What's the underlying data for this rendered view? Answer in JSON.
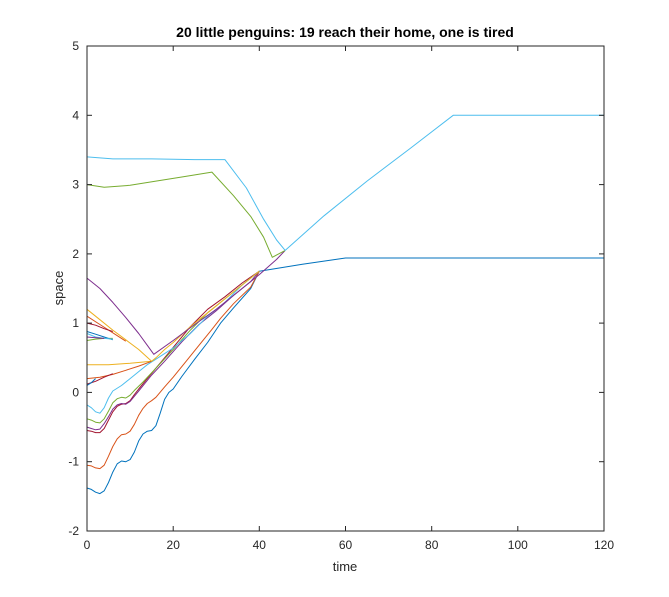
{
  "chart_data": {
    "type": "line",
    "title": "20 little penguins: 19 reach their home, one is tired",
    "xlabel": "time",
    "ylabel": "space",
    "xlim": [
      0,
      120
    ],
    "ylim": [
      -2,
      5
    ],
    "x_ticks": [
      0,
      20,
      40,
      60,
      80,
      100,
      120
    ],
    "y_ticks": [
      -2,
      -1,
      0,
      1,
      2,
      3,
      4,
      5
    ],
    "grid": false,
    "legend": "none",
    "series": [
      {
        "color": "#0072BD",
        "points": [
          [
            0,
            -1.38
          ],
          [
            1,
            -1.4
          ],
          [
            2,
            -1.44
          ],
          [
            3,
            -1.46
          ],
          [
            4,
            -1.42
          ],
          [
            5,
            -1.3
          ],
          [
            6,
            -1.15
          ],
          [
            7,
            -1.03
          ],
          [
            8,
            -0.99
          ],
          [
            9,
            -1.0
          ],
          [
            10,
            -0.97
          ],
          [
            11,
            -0.86
          ],
          [
            12,
            -0.7
          ],
          [
            13,
            -0.6
          ],
          [
            14,
            -0.56
          ],
          [
            15,
            -0.55
          ],
          [
            16,
            -0.48
          ],
          [
            17,
            -0.3
          ],
          [
            18,
            -0.1
          ],
          [
            19,
            0.0
          ],
          [
            20,
            0.05
          ],
          [
            22,
            0.23
          ],
          [
            25,
            0.48
          ],
          [
            28,
            0.72
          ],
          [
            31,
            1.0
          ],
          [
            34,
            1.22
          ],
          [
            38,
            1.5
          ],
          [
            40,
            1.75
          ],
          [
            50,
            1.85
          ],
          [
            60,
            1.94
          ],
          [
            120,
            1.94
          ]
        ]
      },
      {
        "color": "#D95319",
        "points": [
          [
            0,
            -1.05
          ],
          [
            1,
            -1.06
          ],
          [
            2,
            -1.09
          ],
          [
            3,
            -1.1
          ],
          [
            4,
            -1.05
          ],
          [
            5,
            -0.92
          ],
          [
            6,
            -0.78
          ],
          [
            7,
            -0.67
          ],
          [
            8,
            -0.61
          ],
          [
            9,
            -0.6
          ],
          [
            10,
            -0.56
          ],
          [
            11,
            -0.46
          ],
          [
            12,
            -0.33
          ],
          [
            13,
            -0.23
          ],
          [
            14,
            -0.16
          ],
          [
            15,
            -0.12
          ],
          [
            16,
            -0.07
          ],
          [
            18,
            0.08
          ],
          [
            20,
            0.22
          ],
          [
            23,
            0.45
          ],
          [
            26,
            0.68
          ],
          [
            29,
            0.91
          ],
          [
            31,
            1.07
          ],
          [
            34,
            1.28
          ],
          [
            38,
            1.52
          ],
          [
            40,
            1.75
          ]
        ]
      },
      {
        "color": "#A2142F",
        "points": [
          [
            0,
            -0.55
          ],
          [
            1,
            -0.56
          ],
          [
            2,
            -0.58
          ],
          [
            3,
            -0.58
          ],
          [
            4,
            -0.52
          ],
          [
            5,
            -0.4
          ],
          [
            6,
            -0.28
          ],
          [
            7,
            -0.2
          ],
          [
            8,
            -0.17
          ],
          [
            9,
            -0.16
          ],
          [
            10,
            -0.12
          ],
          [
            11,
            -0.03
          ],
          [
            12,
            0.05
          ],
          [
            14,
            0.2
          ],
          [
            16,
            0.35
          ],
          [
            18,
            0.5
          ],
          [
            20,
            0.65
          ],
          [
            24,
            0.95
          ],
          [
            28,
            1.2
          ],
          [
            32,
            1.38
          ],
          [
            36,
            1.58
          ],
          [
            40,
            1.75
          ]
        ]
      },
      {
        "color": "#77AC30",
        "points": [
          [
            0,
            -0.38
          ],
          [
            1,
            -0.4
          ],
          [
            2,
            -0.43
          ],
          [
            3,
            -0.44
          ],
          [
            4,
            -0.38
          ],
          [
            5,
            -0.27
          ],
          [
            6,
            -0.15
          ],
          [
            7,
            -0.09
          ],
          [
            8,
            -0.07
          ],
          [
            9,
            -0.08
          ],
          [
            10,
            -0.04
          ],
          [
            11,
            0.03
          ],
          [
            13,
            0.15
          ],
          [
            16,
            0.35
          ],
          [
            20,
            0.62
          ],
          [
            24,
            0.9
          ],
          [
            28,
            1.15
          ],
          [
            32,
            1.35
          ],
          [
            36,
            1.55
          ],
          [
            40,
            1.75
          ]
        ]
      },
      {
        "color": "#7E2F8E",
        "points": [
          [
            0,
            -0.5
          ],
          [
            1,
            -0.52
          ],
          [
            2,
            -0.54
          ],
          [
            3,
            -0.53
          ],
          [
            4,
            -0.45
          ],
          [
            5,
            -0.35
          ],
          [
            6,
            -0.24
          ],
          [
            7,
            -0.18
          ],
          [
            8,
            -0.16
          ],
          [
            9,
            -0.17
          ],
          [
            10,
            -0.13
          ],
          [
            12,
            0.02
          ],
          [
            15,
            0.25
          ],
          [
            18,
            0.45
          ],
          [
            22,
            0.73
          ],
          [
            26,
            0.98
          ],
          [
            30,
            1.18
          ],
          [
            34,
            1.4
          ],
          [
            38,
            1.6
          ],
          [
            40,
            1.75
          ]
        ]
      },
      {
        "color": "#4DBEEE",
        "points": [
          [
            0,
            -0.18
          ],
          [
            1,
            -0.22
          ],
          [
            2,
            -0.28
          ],
          [
            3,
            -0.3
          ],
          [
            4,
            -0.22
          ],
          [
            5,
            -0.08
          ],
          [
            6,
            0.02
          ],
          [
            8,
            0.1
          ],
          [
            10,
            0.2
          ],
          [
            12,
            0.3
          ],
          [
            14,
            0.4
          ],
          [
            16,
            0.48
          ],
          [
            18,
            0.56
          ],
          [
            20,
            0.64
          ],
          [
            24,
            0.85
          ],
          [
            28,
            1.1
          ],
          [
            32,
            1.3
          ],
          [
            36,
            1.55
          ],
          [
            40,
            1.75
          ]
        ]
      },
      {
        "color": "#EDB120",
        "points": [
          [
            0,
            0.4
          ],
          [
            5,
            0.4
          ],
          [
            10,
            0.42
          ],
          [
            15,
            0.45
          ],
          [
            16,
            0.5
          ],
          [
            18,
            0.62
          ],
          [
            20,
            0.72
          ],
          [
            24,
            0.95
          ],
          [
            28,
            1.15
          ],
          [
            32,
            1.35
          ],
          [
            36,
            1.55
          ],
          [
            40,
            1.75
          ]
        ]
      },
      {
        "color": "#D95319",
        "points": [
          [
            0,
            0.2
          ],
          [
            3,
            0.22
          ],
          [
            6,
            0.26
          ],
          [
            9,
            0.32
          ],
          [
            12,
            0.38
          ],
          [
            15,
            0.45
          ]
        ]
      },
      {
        "color": "#A2142F",
        "points": [
          [
            0,
            0.12
          ],
          [
            2,
            0.16
          ],
          [
            4,
            0.22
          ],
          [
            6,
            0.27
          ]
        ]
      },
      {
        "color": "#0072BD",
        "points": [
          [
            0,
            0.1
          ],
          [
            1,
            0.14
          ],
          [
            2,
            0.2
          ]
        ]
      },
      {
        "color": "#77AC30",
        "points": [
          [
            0,
            0.75
          ],
          [
            2,
            0.77
          ],
          [
            4,
            0.78
          ],
          [
            6,
            0.78
          ]
        ]
      },
      {
        "color": "#0072BD",
        "points": [
          [
            0,
            0.88
          ],
          [
            2,
            0.84
          ],
          [
            4,
            0.8
          ],
          [
            6,
            0.76
          ]
        ]
      },
      {
        "color": "#4DBEEE",
        "points": [
          [
            0,
            0.85
          ],
          [
            2,
            0.8
          ],
          [
            4,
            0.78
          ],
          [
            6,
            0.77
          ]
        ]
      },
      {
        "color": "#7E2F8E",
        "points": [
          [
            0,
            0.8
          ],
          [
            2,
            0.79
          ],
          [
            4,
            0.78
          ]
        ]
      },
      {
        "color": "#D95319",
        "points": [
          [
            0,
            1.1
          ],
          [
            3,
            0.98
          ],
          [
            6,
            0.86
          ],
          [
            9,
            0.74
          ]
        ]
      },
      {
        "color": "#A2142F",
        "points": [
          [
            0,
            1.0
          ],
          [
            2,
            0.97
          ],
          [
            4,
            0.92
          ],
          [
            6,
            0.88
          ]
        ]
      },
      {
        "color": "#EDB120",
        "points": [
          [
            0,
            1.2
          ],
          [
            3,
            1.05
          ],
          [
            6,
            0.9
          ],
          [
            9,
            0.76
          ],
          [
            12,
            0.62
          ],
          [
            15,
            0.45
          ]
        ]
      },
      {
        "color": "#7E2F8E",
        "points": [
          [
            0,
            1.65
          ],
          [
            3,
            1.5
          ],
          [
            6,
            1.3
          ],
          [
            9,
            1.08
          ],
          [
            12,
            0.85
          ],
          [
            14,
            0.68
          ],
          [
            15.5,
            0.55
          ],
          [
            20,
            0.75
          ],
          [
            25,
            0.98
          ],
          [
            30,
            1.2
          ],
          [
            35,
            1.45
          ],
          [
            40,
            1.7
          ],
          [
            44,
            1.92
          ],
          [
            46,
            2.05
          ]
        ]
      },
      {
        "color": "#77AC30",
        "points": [
          [
            0,
            3.0
          ],
          [
            4,
            2.96
          ],
          [
            10,
            2.99
          ],
          [
            16,
            3.05
          ],
          [
            22,
            3.11
          ],
          [
            29,
            3.18
          ],
          [
            34,
            2.84
          ],
          [
            38,
            2.54
          ],
          [
            41,
            2.24
          ],
          [
            43,
            1.95
          ],
          [
            46,
            2.05
          ]
        ]
      },
      {
        "color": "#4DBEEE",
        "points": [
          [
            0,
            3.4
          ],
          [
            6,
            3.37
          ],
          [
            15,
            3.37
          ],
          [
            25,
            3.36
          ],
          [
            32,
            3.36
          ],
          [
            37,
            2.95
          ],
          [
            41,
            2.5
          ],
          [
            44,
            2.2
          ],
          [
            46,
            2.05
          ],
          [
            55,
            2.55
          ],
          [
            65,
            3.05
          ],
          [
            75,
            3.52
          ],
          [
            85,
            4.0
          ],
          [
            120,
            4.0
          ]
        ]
      }
    ]
  }
}
